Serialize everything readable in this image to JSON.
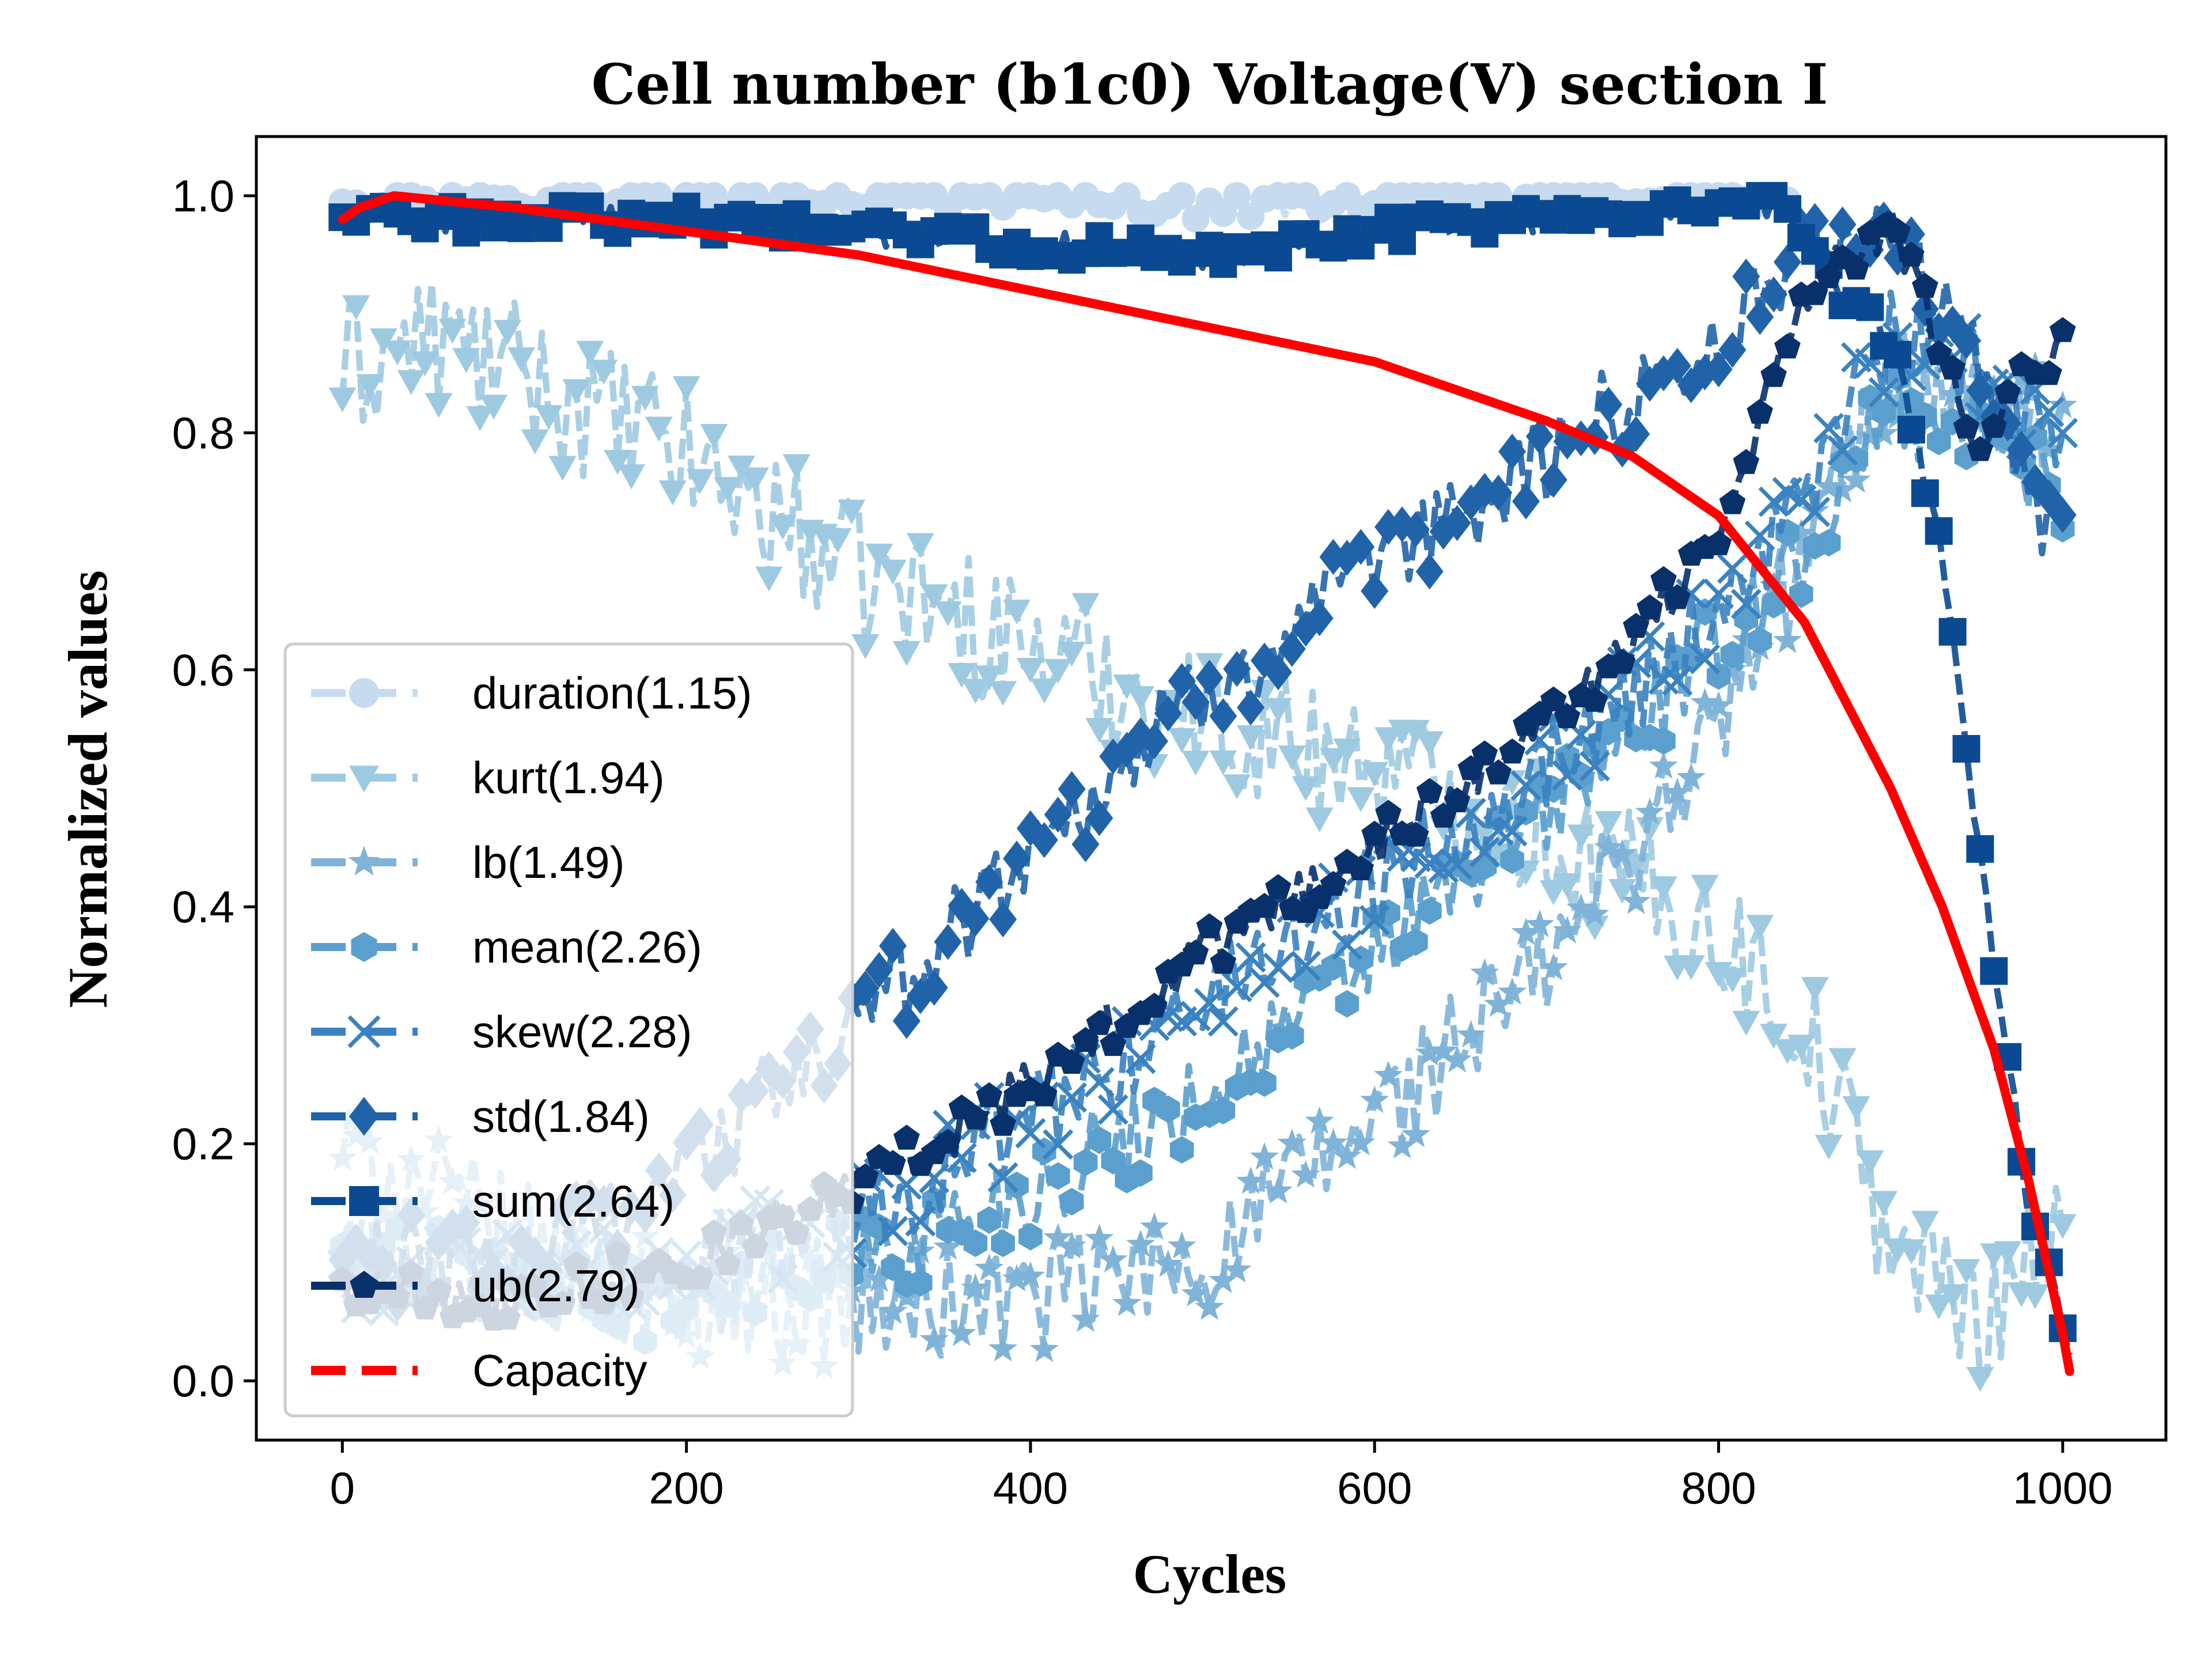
{
  "chart_data": {
    "type": "line",
    "title": "Cell number (b1c0) Voltage(V) section I",
    "xlabel": "Cycles",
    "ylabel": "Normalized values",
    "xlim": [
      -50,
      1060
    ],
    "ylim": [
      -0.05,
      1.05
    ],
    "xticks": [
      0,
      200,
      400,
      600,
      800,
      1000
    ],
    "yticks": [
      0.0,
      0.2,
      0.4,
      0.6,
      0.8,
      1.0
    ],
    "xtick_labels": [
      "0",
      "200",
      "400",
      "600",
      "800",
      "1000"
    ],
    "ytick_labels": [
      "0.0",
      "0.2",
      "0.4",
      "0.6",
      "0.8",
      "1.0"
    ],
    "legend_position": "lower-left",
    "grid": false,
    "series": [
      {
        "name": "duration(1.15)",
        "color": "#c6dbef",
        "marker": "circle",
        "noise": 0.012,
        "x": [
          0,
          100,
          200,
          300,
          400,
          500,
          600,
          700,
          800,
          840
        ],
        "y": [
          1.0,
          1.0,
          1.0,
          1.0,
          1.0,
          0.99,
          1.0,
          1.0,
          1.0,
          1.0
        ]
      },
      {
        "name": "kurt(1.94)",
        "color": "#9ecae1",
        "marker": "triangle-down",
        "noise": 0.06,
        "x": [
          0,
          50,
          100,
          200,
          300,
          400,
          500,
          600,
          700,
          750,
          800,
          850,
          900,
          950,
          1000
        ],
        "y": [
          0.85,
          0.88,
          0.85,
          0.78,
          0.68,
          0.62,
          0.56,
          0.52,
          0.46,
          0.42,
          0.38,
          0.3,
          0.12,
          0.05,
          0.15
        ]
      },
      {
        "name": "lb(1.49)",
        "color": "#7fb3d8",
        "marker": "star",
        "noise": 0.05,
        "x": [
          0,
          100,
          200,
          300,
          400,
          500,
          600,
          700,
          800,
          850,
          900,
          950,
          1000
        ],
        "y": [
          0.2,
          0.12,
          0.07,
          0.06,
          0.07,
          0.1,
          0.22,
          0.35,
          0.55,
          0.7,
          0.85,
          0.82,
          0.8
        ]
      },
      {
        "name": "mean(2.26)",
        "color": "#5a9fcd",
        "marker": "hexagon",
        "noise": 0.04,
        "x": [
          0,
          100,
          200,
          300,
          400,
          500,
          600,
          700,
          800,
          850,
          900,
          950,
          1000
        ],
        "y": [
          0.12,
          0.08,
          0.07,
          0.1,
          0.16,
          0.24,
          0.36,
          0.48,
          0.62,
          0.7,
          0.82,
          0.8,
          0.75
        ]
      },
      {
        "name": "skew(2.28)",
        "color": "#3a82c0",
        "marker": "x",
        "noise": 0.04,
        "x": [
          0,
          100,
          200,
          300,
          400,
          500,
          600,
          700,
          800,
          850,
          900,
          950,
          1000
        ],
        "y": [
          0.1,
          0.09,
          0.1,
          0.14,
          0.22,
          0.32,
          0.42,
          0.52,
          0.65,
          0.75,
          0.88,
          0.85,
          0.8
        ]
      },
      {
        "name": "std(1.84)",
        "color": "#2163a8",
        "marker": "diamond",
        "noise": 0.04,
        "x": [
          0,
          100,
          200,
          300,
          400,
          500,
          600,
          700,
          800,
          850,
          900,
          950,
          1000
        ],
        "y": [
          0.1,
          0.1,
          0.18,
          0.3,
          0.45,
          0.58,
          0.68,
          0.78,
          0.88,
          0.95,
          0.98,
          0.85,
          0.7
        ]
      },
      {
        "name": "sum(2.64)",
        "color": "#0b4a92",
        "marker": "square",
        "noise": 0.012,
        "x": [
          0,
          100,
          200,
          300,
          400,
          500,
          600,
          700,
          800,
          840,
          870,
          900,
          930,
          960,
          980,
          1000,
          1005
        ],
        "y": [
          0.98,
          0.98,
          0.98,
          0.97,
          0.96,
          0.95,
          0.97,
          0.98,
          0.99,
          0.99,
          0.92,
          0.88,
          0.7,
          0.35,
          0.15,
          0.05,
          0.0
        ]
      },
      {
        "name": "ub(2.79)",
        "color": "#08306b",
        "marker": "pentagon",
        "noise": 0.02,
        "x": [
          0,
          100,
          200,
          300,
          400,
          500,
          600,
          700,
          750,
          800,
          850,
          900,
          950,
          1000
        ],
        "y": [
          0.08,
          0.07,
          0.1,
          0.16,
          0.25,
          0.36,
          0.45,
          0.56,
          0.62,
          0.72,
          0.92,
          0.98,
          0.8,
          0.88
        ]
      },
      {
        "name": "Capacity",
        "color": "#ff0000",
        "marker": "none",
        "noise": 0,
        "x": [
          0,
          10,
          30,
          100,
          200,
          300,
          400,
          500,
          600,
          700,
          750,
          800,
          850,
          900,
          930,
          960,
          980,
          1000,
          1005
        ],
        "y": [
          0.98,
          0.99,
          1.0,
          0.99,
          0.97,
          0.95,
          0.92,
          0.89,
          0.86,
          0.81,
          0.78,
          0.73,
          0.64,
          0.5,
          0.4,
          0.28,
          0.17,
          0.04,
          0.0
        ]
      }
    ]
  }
}
